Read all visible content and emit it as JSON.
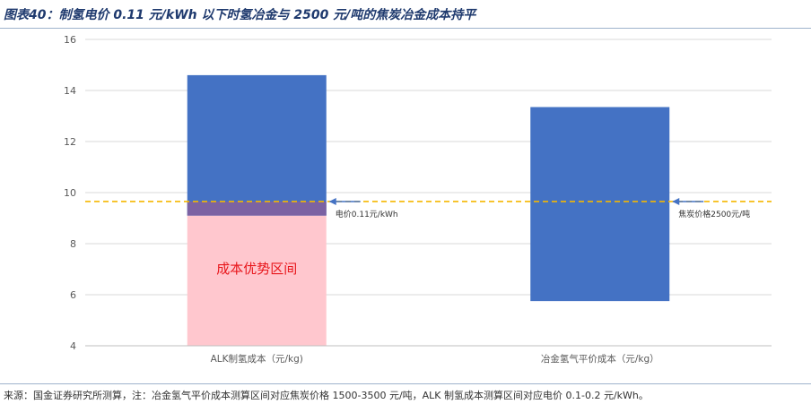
{
  "title": "图表40：制氢电价 0.11 元/kWh 以下时氢冶金与 2500 元/吨的焦炭冶金成本持平",
  "source": "来源：国金证券研究所测算，注：冶金氢气平价成本测算区间对应焦炭价格 1500-3500 元/吨，ALK 制氢成本测算区间对应电价 0.1-0.2 元/kWh。",
  "chart_data": {
    "type": "bar",
    "categories": [
      "ALK制氢成本（元/kg)",
      "冶金氢气平价成本（元/kg）"
    ],
    "ylim": [
      4,
      16
    ],
    "yticks": [
      4,
      6,
      8,
      10,
      12,
      14,
      16
    ],
    "ytick_labels": [
      "4",
      "6",
      "8",
      "10",
      "12",
      "14",
      "16"
    ],
    "grid": true,
    "floating_bars": [
      {
        "category": "ALK制氢成本（元/kg)",
        "low": 9.1,
        "high": 14.6,
        "color": "#4472c4"
      },
      {
        "category": "冶金氢气平价成本（元/kg）",
        "low": 5.75,
        "high": 13.35,
        "color": "#4472c4"
      }
    ],
    "advantage_zone": {
      "category": "ALK制氢成本（元/kg)",
      "low": 4,
      "high": 9.1,
      "color": "#ffc7ce",
      "label": "成本优势区间",
      "label_color": "#e8161b",
      "label_value": 7.05
    },
    "overlap_band": {
      "category": "ALK制氢成本（元/kg)",
      "low": 9.1,
      "high": 9.65,
      "color": "#7b62a3"
    },
    "reference_line": {
      "value": 9.65,
      "color": "#f5b800",
      "style": "dashed"
    },
    "annotations": [
      {
        "text": "电价0.11元/kWh",
        "category": "ALK制氢成本（元/kg)",
        "value": 9.65
      },
      {
        "text": "焦炭价格2500元/吨",
        "category": "冶金氢气平价成本（元/kg）",
        "value": 9.65
      }
    ]
  }
}
